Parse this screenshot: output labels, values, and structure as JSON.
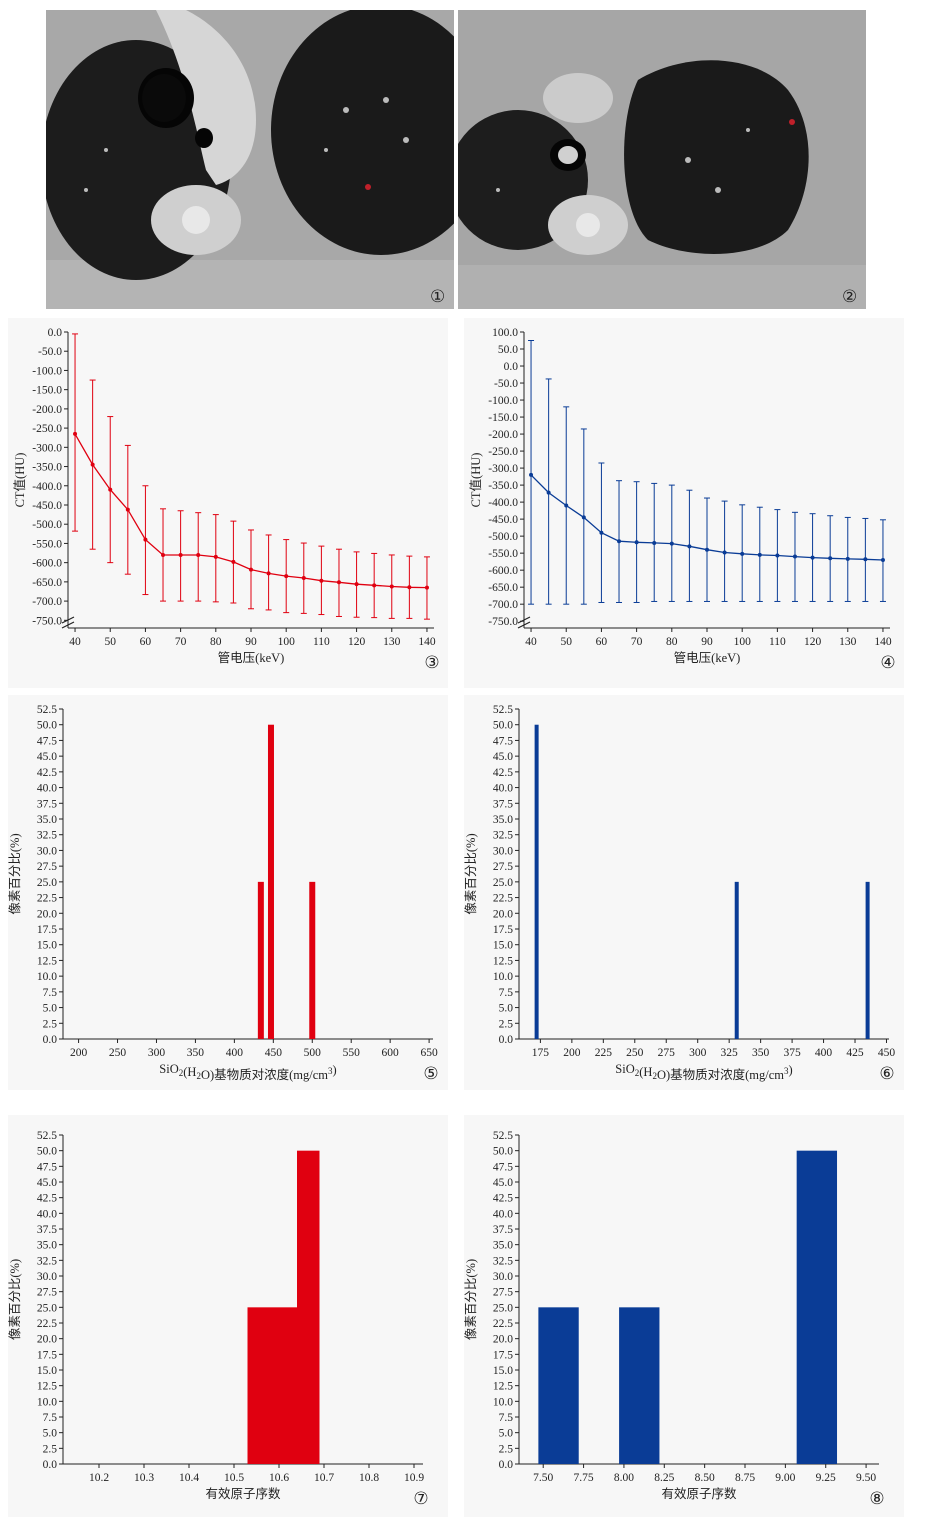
{
  "panels": [
    {
      "id": "p1",
      "marker": "①",
      "kind": "ct-image"
    },
    {
      "id": "p2",
      "marker": "②",
      "kind": "ct-image"
    }
  ],
  "colors": {
    "red": "#e00010",
    "blue": "#0a3c96"
  },
  "chart_data": [
    {
      "id": "c3",
      "marker": "③",
      "type": "line",
      "color": "#e00010",
      "title": "",
      "xlabel": "管电压(keV)",
      "ylabel": "CT值(HU)",
      "xlim": [
        38,
        142
      ],
      "ylim": [
        -770,
        0
      ],
      "xticks": [
        40,
        50,
        60,
        70,
        80,
        90,
        100,
        110,
        120,
        130,
        140
      ],
      "yticks": [
        0,
        -50,
        -100,
        -150,
        -200,
        -250,
        -300,
        -350,
        -400,
        -450,
        -500,
        -550,
        -600,
        -650,
        -700,
        -750
      ],
      "axis_break": true,
      "x": [
        40,
        45,
        50,
        55,
        60,
        65,
        70,
        75,
        80,
        85,
        90,
        95,
        100,
        105,
        110,
        115,
        120,
        125,
        130,
        135,
        140
      ],
      "y": [
        -265,
        -345,
        -410,
        -462,
        -540,
        -580,
        -580,
        -580,
        -585,
        -598,
        -618,
        -628,
        -635,
        -640,
        -647,
        -651,
        -656,
        -659,
        -662,
        -664,
        -665
      ],
      "err_hi": [
        -5,
        -125,
        -220,
        -295,
        -400,
        -460,
        -465,
        -470,
        -475,
        -492,
        -515,
        -528,
        -540,
        -549,
        -557,
        -565,
        -572,
        -576,
        -580,
        -583,
        -585
      ],
      "err_lo": [
        -518,
        -565,
        -600,
        -630,
        -683,
        -700,
        -700,
        -700,
        -702,
        -705,
        -720,
        -723,
        -730,
        -732,
        -735,
        -740,
        -742,
        -743,
        -745,
        -745,
        -747
      ]
    },
    {
      "id": "c4",
      "marker": "④",
      "type": "line",
      "color": "#0a3c96",
      "title": "",
      "xlabel": "管电压(keV)",
      "ylabel": "CT值(HU)",
      "xlim": [
        38,
        142
      ],
      "ylim": [
        -770,
        100
      ],
      "xticks": [
        40,
        50,
        60,
        70,
        80,
        90,
        100,
        110,
        120,
        130,
        140
      ],
      "yticks": [
        100,
        50,
        0,
        -50,
        -100,
        -150,
        -200,
        -250,
        -300,
        -350,
        -400,
        -450,
        -500,
        -550,
        -600,
        -650,
        -700,
        -750
      ],
      "axis_break": true,
      "x": [
        40,
        45,
        50,
        55,
        60,
        65,
        70,
        75,
        80,
        85,
        90,
        95,
        100,
        105,
        110,
        115,
        120,
        125,
        130,
        135,
        140
      ],
      "y": [
        -320,
        -372,
        -410,
        -445,
        -490,
        -515,
        -518,
        -520,
        -522,
        -530,
        -540,
        -548,
        -552,
        -555,
        -557,
        -560,
        -563,
        -565,
        -567,
        -568,
        -570
      ],
      "err_hi": [
        75,
        -38,
        -120,
        -185,
        -285,
        -337,
        -340,
        -345,
        -350,
        -365,
        -388,
        -397,
        -408,
        -415,
        -422,
        -430,
        -434,
        -440,
        -445,
        -448,
        -452
      ],
      "err_lo": [
        -700,
        -700,
        -700,
        -700,
        -695,
        -695,
        -695,
        -692,
        -692,
        -692,
        -692,
        -692,
        -692,
        -692,
        -692,
        -692,
        -692,
        -692,
        -692,
        -692,
        -692
      ]
    },
    {
      "id": "c5",
      "marker": "⑤",
      "type": "bar",
      "color": "#e00010",
      "title": "",
      "xlabel": "SiO2(H2O)基物质对浓度(mg/cm3)",
      "xlabel_parts": {
        "a": "SiO",
        "b": "2",
        "c": "(H",
        "d": "2",
        "e": "O)基物质对浓度(mg/cm",
        "f": "3",
        "g": ")"
      },
      "ylabel": "像素百分比(%)",
      "xlim": [
        180,
        655
      ],
      "ylim": [
        0,
        52.5
      ],
      "xticks": [
        200,
        250,
        300,
        350,
        400,
        450,
        500,
        550,
        600,
        650
      ],
      "yticks": [
        0.0,
        2.5,
        5.0,
        7.5,
        10.0,
        12.5,
        15.0,
        17.5,
        20.0,
        22.5,
        25.0,
        27.5,
        30.0,
        32.5,
        35.0,
        37.5,
        40.0,
        42.5,
        45.0,
        47.5,
        50.0,
        52.5
      ],
      "bar_width": 6,
      "bars": [
        {
          "x": 434,
          "value": 25
        },
        {
          "x": 447,
          "value": 50
        },
        {
          "x": 500,
          "value": 25
        }
      ]
    },
    {
      "id": "c6",
      "marker": "⑥",
      "type": "bar",
      "color": "#0a3c96",
      "title": "",
      "xlabel": "SiO2(H2O)基物质对浓度(mg/cm3)",
      "xlabel_parts": {
        "a": "SiO",
        "b": "2",
        "c": "(H",
        "d": "2",
        "e": "O)基物质对浓度(mg/cm",
        "f": "3",
        "g": ")"
      },
      "ylabel": "像素百分比(%)",
      "xlim": [
        158,
        452
      ],
      "ylim": [
        0,
        52.5
      ],
      "xticks": [
        175,
        200,
        225,
        250,
        275,
        300,
        325,
        350,
        375,
        400,
        425,
        450
      ],
      "yticks": [
        0.0,
        2.5,
        5.0,
        7.5,
        10.0,
        12.5,
        15.0,
        17.5,
        20.0,
        22.5,
        25.0,
        27.5,
        30.0,
        32.5,
        35.0,
        37.5,
        40.0,
        42.5,
        45.0,
        47.5,
        50.0,
        52.5
      ],
      "bar_width": 4,
      "bars": [
        {
          "x": 172,
          "value": 50
        },
        {
          "x": 331,
          "value": 25
        },
        {
          "x": 435,
          "value": 25
        }
      ]
    },
    {
      "id": "c7",
      "marker": "⑦",
      "type": "bar",
      "color": "#e00010",
      "title": "",
      "xlabel": "有效原子序数",
      "ylabel": "像素百分比(%)",
      "xlim": [
        10.12,
        10.92
      ],
      "ylim": [
        0,
        52.5
      ],
      "xticks": [
        "10.2",
        "10.3",
        "10.4",
        "10.5",
        "10.6",
        "10.7",
        "10.8",
        "10.9"
      ],
      "yticks": [
        0.0,
        2.5,
        5.0,
        7.5,
        10.0,
        12.5,
        15.0,
        17.5,
        20.0,
        22.5,
        25.0,
        27.5,
        30.0,
        32.5,
        35.0,
        37.5,
        40.0,
        42.5,
        45.0,
        47.5,
        50.0,
        52.5
      ],
      "bars": [
        {
          "x0": 10.53,
          "x1": 10.64,
          "value": 25
        },
        {
          "x0": 10.64,
          "x1": 10.69,
          "value": 50
        }
      ]
    },
    {
      "id": "c8",
      "marker": "⑧",
      "type": "bar",
      "color": "#0a3c96",
      "title": "",
      "xlabel": "有效原子序数",
      "ylabel": "像素百分比(%)",
      "xlim": [
        7.35,
        9.58
      ],
      "ylim": [
        0,
        52.5
      ],
      "xticks": [
        "7.50",
        "7.75",
        "8.00",
        "8.25",
        "8.50",
        "8.75",
        "9.00",
        "9.25",
        "9.50"
      ],
      "yticks": [
        0.0,
        2.5,
        5.0,
        7.5,
        10.0,
        12.5,
        15.0,
        17.5,
        20.0,
        22.5,
        25.0,
        27.5,
        30.0,
        32.5,
        35.0,
        37.5,
        40.0,
        42.5,
        45.0,
        47.5,
        50.0,
        52.5
      ],
      "bars": [
        {
          "x0": 7.47,
          "x1": 7.72,
          "value": 25
        },
        {
          "x0": 7.97,
          "x1": 8.22,
          "value": 25
        },
        {
          "x0": 9.07,
          "x1": 9.32,
          "value": 50
        }
      ]
    }
  ]
}
